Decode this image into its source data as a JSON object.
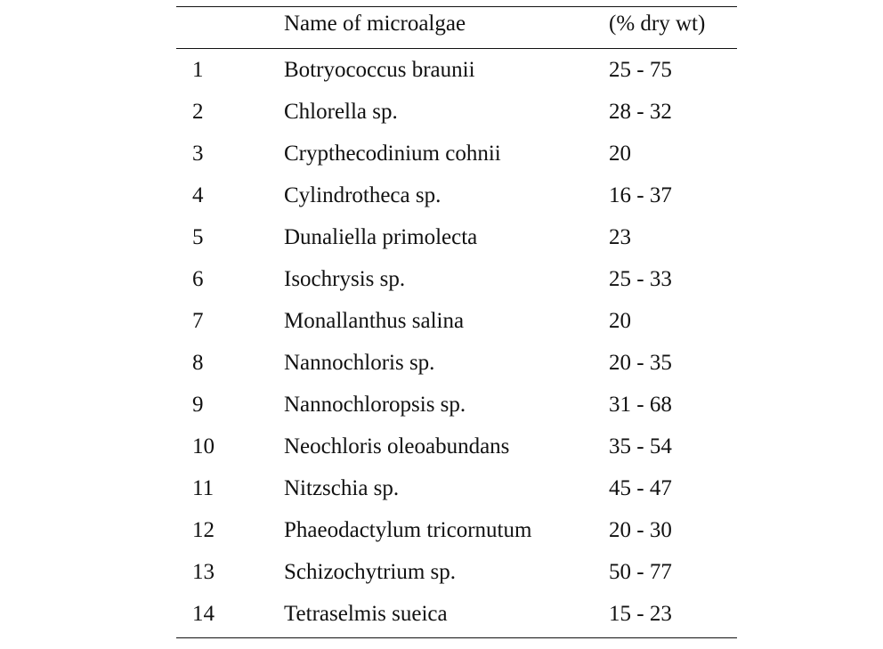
{
  "table": {
    "headers": [
      "",
      "Name of microalgae",
      "(% dry wt)"
    ],
    "rows": [
      {
        "no": "1",
        "name": "Botryococcus braunii",
        "value": "25 - 75"
      },
      {
        "no": "2",
        "name": "Chlorella sp.",
        "value": "28 - 32"
      },
      {
        "no": "3",
        "name": "Crypthecodinium cohnii",
        "value": "20"
      },
      {
        "no": "4",
        "name": "Cylindrotheca sp.",
        "value": "16 - 37"
      },
      {
        "no": "5",
        "name": "Dunaliella primolecta",
        "value": "23"
      },
      {
        "no": "6",
        "name": "Isochrysis sp.",
        "value": "25 - 33"
      },
      {
        "no": "7",
        "name": "Monallanthus salina",
        "value": "20"
      },
      {
        "no": "8",
        "name": "Nannochloris sp.",
        "value": "20 - 35"
      },
      {
        "no": "9",
        "name": "Nannochloropsis sp.",
        "value": "31 - 68"
      },
      {
        "no": "10",
        "name": "Neochloris oleoabundans",
        "value": "35 - 54"
      },
      {
        "no": "11",
        "name": "Nitzschia sp.",
        "value": "45 - 47"
      },
      {
        "no": "12",
        "name": "Phaeodactylum tricornutum",
        "value": "20 - 30"
      },
      {
        "no": "13",
        "name": "Schizochytrium sp.",
        "value": "50 - 77"
      },
      {
        "no": "14",
        "name": "Tetraselmis sueica",
        "value": "15 - 23"
      }
    ]
  }
}
